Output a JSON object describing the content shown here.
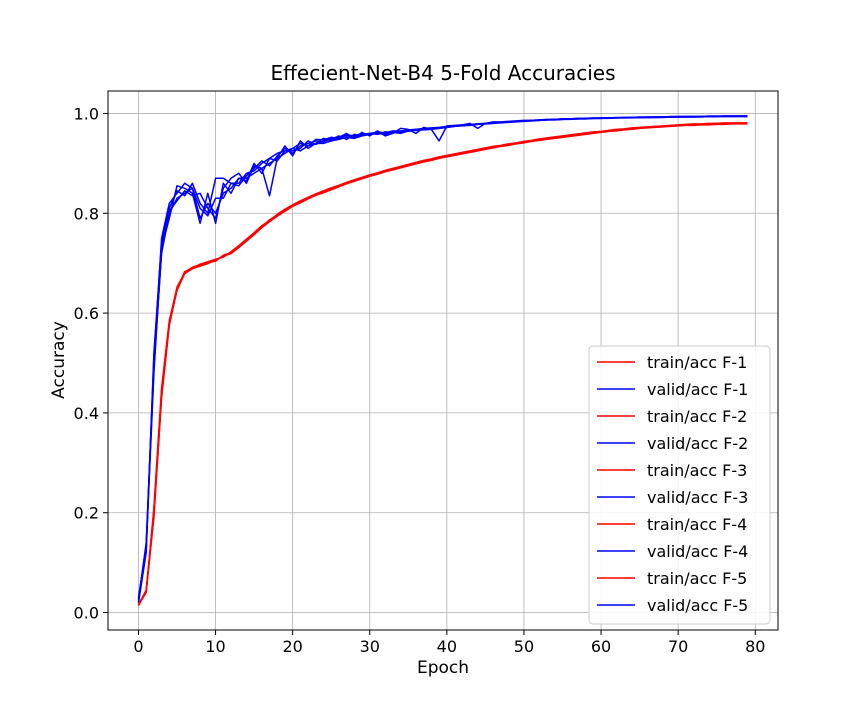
{
  "chart_data": {
    "type": "line",
    "title": "Effecient-Net-B4 5-Fold Accuracies",
    "xlabel": "Epoch",
    "ylabel": "Accuracy",
    "xlim": [
      -3.95,
      82.95
    ],
    "ylim": [
      -0.035,
      1.045
    ],
    "xticks": [
      0,
      10,
      20,
      30,
      40,
      50,
      60,
      70,
      80
    ],
    "xtick_labels": [
      "0",
      "10",
      "20",
      "30",
      "40",
      "50",
      "60",
      "70",
      "80"
    ],
    "yticks": [
      0.0,
      0.2,
      0.4,
      0.6,
      0.8,
      1.0
    ],
    "ytick_labels": [
      "0.0",
      "0.2",
      "0.4",
      "0.6",
      "0.8",
      "1.0"
    ],
    "grid": true,
    "legend_position": "lower-right",
    "colors": {
      "train": "#ff0000",
      "valid": "#0000ff"
    },
    "x": [
      0,
      1,
      2,
      3,
      4,
      5,
      6,
      7,
      8,
      9,
      10,
      11,
      12,
      13,
      14,
      15,
      16,
      17,
      18,
      19,
      20,
      21,
      22,
      23,
      24,
      25,
      26,
      27,
      28,
      29,
      30,
      31,
      32,
      33,
      34,
      35,
      36,
      37,
      38,
      39,
      40,
      41,
      42,
      43,
      44,
      45,
      46,
      47,
      48,
      49,
      50,
      51,
      52,
      53,
      54,
      55,
      56,
      57,
      58,
      59,
      60,
      61,
      62,
      63,
      64,
      65,
      66,
      67,
      68,
      69,
      70,
      71,
      72,
      73,
      74,
      75,
      76,
      77,
      78,
      79
    ],
    "series": [
      {
        "name": "train/acc F-1",
        "color": "#ff0000",
        "values": [
          0.015,
          0.045,
          0.2,
          0.44,
          0.58,
          0.645,
          0.68,
          0.69,
          0.695,
          0.7,
          0.705,
          0.715,
          0.72,
          0.732,
          0.745,
          0.758,
          0.772,
          0.785,
          0.795,
          0.805,
          0.815,
          0.822,
          0.83,
          0.837,
          0.842,
          0.848,
          0.854,
          0.86,
          0.865,
          0.87,
          0.875,
          0.879,
          0.884,
          0.888,
          0.892,
          0.896,
          0.9,
          0.904,
          0.907,
          0.911,
          0.914,
          0.917,
          0.92,
          0.923,
          0.926,
          0.929,
          0.932,
          0.935,
          0.937,
          0.94,
          0.942,
          0.945,
          0.947,
          0.949,
          0.951,
          0.953,
          0.955,
          0.957,
          0.959,
          0.961,
          0.963,
          0.965,
          0.966,
          0.968,
          0.969,
          0.971,
          0.972,
          0.973,
          0.974,
          0.975,
          0.976,
          0.977,
          0.977,
          0.978,
          0.978,
          0.979,
          0.979,
          0.98,
          0.98,
          0.98
        ]
      },
      {
        "name": "valid/acc F-1",
        "color": "#0000ff",
        "values": [
          0.025,
          0.14,
          0.5,
          0.72,
          0.8,
          0.83,
          0.84,
          0.85,
          0.79,
          0.82,
          0.8,
          0.84,
          0.85,
          0.87,
          0.87,
          0.88,
          0.89,
          0.9,
          0.91,
          0.92,
          0.93,
          0.925,
          0.935,
          0.94,
          0.94,
          0.945,
          0.948,
          0.952,
          0.95,
          0.955,
          0.958,
          0.96,
          0.958,
          0.962,
          0.96,
          0.965,
          0.966,
          0.967,
          0.968,
          0.97,
          0.972,
          0.974,
          0.975,
          0.976,
          0.978,
          0.979,
          0.98,
          0.981,
          0.982,
          0.983,
          0.984,
          0.985,
          0.986,
          0.987,
          0.987,
          0.988,
          0.988,
          0.989,
          0.989,
          0.99,
          0.99,
          0.99,
          0.991,
          0.991,
          0.991,
          0.992,
          0.992,
          0.992,
          0.992,
          0.993,
          0.993,
          0.993,
          0.993,
          0.993,
          0.994,
          0.994,
          0.994,
          0.994,
          0.994,
          0.994
        ]
      },
      {
        "name": "train/acc F-2",
        "color": "#ff0000",
        "values": [
          0.016,
          0.04,
          0.21,
          0.45,
          0.585,
          0.65,
          0.682,
          0.692,
          0.697,
          0.702,
          0.706,
          0.713,
          0.722,
          0.734,
          0.747,
          0.76,
          0.774,
          0.786,
          0.797,
          0.807,
          0.816,
          0.824,
          0.831,
          0.838,
          0.844,
          0.85,
          0.855,
          0.861,
          0.866,
          0.871,
          0.876,
          0.88,
          0.885,
          0.889,
          0.893,
          0.897,
          0.901,
          0.905,
          0.908,
          0.912,
          0.915,
          0.918,
          0.921,
          0.924,
          0.927,
          0.93,
          0.933,
          0.935,
          0.938,
          0.94,
          0.943,
          0.945,
          0.948,
          0.95,
          0.952,
          0.954,
          0.956,
          0.958,
          0.96,
          0.962,
          0.963,
          0.965,
          0.967,
          0.968,
          0.97,
          0.971,
          0.972,
          0.973,
          0.974,
          0.975,
          0.976,
          0.977,
          0.978,
          0.978,
          0.979,
          0.979,
          0.98,
          0.98,
          0.98,
          0.981
        ]
      },
      {
        "name": "valid/acc F-2",
        "color": "#0000ff",
        "values": [
          0.02,
          0.12,
          0.52,
          0.74,
          0.81,
          0.845,
          0.835,
          0.86,
          0.82,
          0.8,
          0.87,
          0.87,
          0.86,
          0.855,
          0.875,
          0.89,
          0.905,
          0.895,
          0.915,
          0.93,
          0.92,
          0.935,
          0.94,
          0.945,
          0.943,
          0.95,
          0.953,
          0.955,
          0.953,
          0.958,
          0.96,
          0.962,
          0.96,
          0.964,
          0.962,
          0.966,
          0.968,
          0.969,
          0.97,
          0.971,
          0.973,
          0.975,
          0.976,
          0.977,
          0.979,
          0.98,
          0.981,
          0.982,
          0.983,
          0.984,
          0.985,
          0.986,
          0.986,
          0.987,
          0.988,
          0.988,
          0.989,
          0.989,
          0.99,
          0.99,
          0.99,
          0.991,
          0.991,
          0.992,
          0.992,
          0.992,
          0.992,
          0.993,
          0.993,
          0.993,
          0.993,
          0.994,
          0.994,
          0.994,
          0.994,
          0.994,
          0.995,
          0.995,
          0.995,
          0.995
        ]
      },
      {
        "name": "train/acc F-3",
        "color": "#ff0000",
        "values": [
          0.014,
          0.042,
          0.19,
          0.43,
          0.575,
          0.648,
          0.679,
          0.689,
          0.694,
          0.699,
          0.707,
          0.714,
          0.719,
          0.731,
          0.744,
          0.757,
          0.771,
          0.783,
          0.794,
          0.804,
          0.814,
          0.821,
          0.829,
          0.836,
          0.841,
          0.847,
          0.853,
          0.859,
          0.864,
          0.869,
          0.874,
          0.878,
          0.883,
          0.887,
          0.891,
          0.895,
          0.899,
          0.903,
          0.906,
          0.91,
          0.913,
          0.916,
          0.919,
          0.922,
          0.925,
          0.928,
          0.931,
          0.934,
          0.936,
          0.939,
          0.941,
          0.944,
          0.946,
          0.948,
          0.95,
          0.952,
          0.954,
          0.956,
          0.958,
          0.96,
          0.962,
          0.964,
          0.965,
          0.967,
          0.968,
          0.97,
          0.971,
          0.972,
          0.973,
          0.974,
          0.975,
          0.976,
          0.976,
          0.977,
          0.977,
          0.978,
          0.978,
          0.979,
          0.979,
          0.979
        ]
      },
      {
        "name": "valid/acc F-3",
        "color": "#0000ff",
        "values": [
          0.03,
          0.13,
          0.48,
          0.73,
          0.79,
          0.855,
          0.85,
          0.84,
          0.78,
          0.84,
          0.78,
          0.86,
          0.84,
          0.87,
          0.865,
          0.9,
          0.88,
          0.91,
          0.905,
          0.925,
          0.925,
          0.93,
          0.945,
          0.938,
          0.945,
          0.948,
          0.955,
          0.948,
          0.958,
          0.955,
          0.96,
          0.958,
          0.963,
          0.962,
          0.965,
          0.964,
          0.967,
          0.968,
          0.97,
          0.97,
          0.972,
          0.974,
          0.976,
          0.977,
          0.978,
          0.979,
          0.98,
          0.982,
          0.983,
          0.984,
          0.985,
          0.985,
          0.986,
          0.987,
          0.987,
          0.988,
          0.989,
          0.989,
          0.989,
          0.99,
          0.99,
          0.991,
          0.991,
          0.991,
          0.992,
          0.992,
          0.992,
          0.992,
          0.993,
          0.993,
          0.993,
          0.993,
          0.993,
          0.994,
          0.994,
          0.994,
          0.994,
          0.994,
          0.994,
          0.994
        ]
      },
      {
        "name": "train/acc F-4",
        "color": "#ff0000",
        "values": [
          0.015,
          0.044,
          0.205,
          0.445,
          0.582,
          0.652,
          0.681,
          0.691,
          0.696,
          0.701,
          0.704,
          0.716,
          0.721,
          0.733,
          0.746,
          0.759,
          0.773,
          0.787,
          0.796,
          0.806,
          0.815,
          0.823,
          0.83,
          0.836,
          0.843,
          0.849,
          0.854,
          0.86,
          0.865,
          0.87,
          0.875,
          0.879,
          0.884,
          0.888,
          0.892,
          0.896,
          0.9,
          0.904,
          0.907,
          0.911,
          0.914,
          0.917,
          0.92,
          0.923,
          0.926,
          0.929,
          0.932,
          0.935,
          0.937,
          0.94,
          0.942,
          0.945,
          0.947,
          0.949,
          0.951,
          0.953,
          0.955,
          0.957,
          0.959,
          0.961,
          0.963,
          0.965,
          0.966,
          0.968,
          0.969,
          0.971,
          0.972,
          0.973,
          0.974,
          0.975,
          0.976,
          0.977,
          0.977,
          0.978,
          0.978,
          0.979,
          0.979,
          0.98,
          0.98,
          0.98
        ]
      },
      {
        "name": "valid/acc F-4",
        "color": "#0000ff",
        "values": [
          0.022,
          0.125,
          0.51,
          0.75,
          0.82,
          0.84,
          0.86,
          0.85,
          0.81,
          0.795,
          0.83,
          0.83,
          0.86,
          0.86,
          0.88,
          0.885,
          0.9,
          0.91,
          0.92,
          0.925,
          0.93,
          0.94,
          0.935,
          0.948,
          0.947,
          0.952,
          0.95,
          0.957,
          0.955,
          0.96,
          0.957,
          0.963,
          0.961,
          0.965,
          0.964,
          0.967,
          0.968,
          0.97,
          0.971,
          0.972,
          0.974,
          0.975,
          0.977,
          0.978,
          0.979,
          0.98,
          0.981,
          0.982,
          0.983,
          0.984,
          0.985,
          0.986,
          0.987,
          0.987,
          0.988,
          0.989,
          0.989,
          0.99,
          0.99,
          0.99,
          0.991,
          0.991,
          0.991,
          0.992,
          0.992,
          0.992,
          0.993,
          0.993,
          0.993,
          0.993,
          0.994,
          0.994,
          0.994,
          0.994,
          0.994,
          0.994,
          0.995,
          0.995,
          0.995,
          0.995
        ]
      },
      {
        "name": "train/acc F-5",
        "color": "#ff0000",
        "values": [
          0.016,
          0.043,
          0.195,
          0.435,
          0.578,
          0.646,
          0.683,
          0.69,
          0.698,
          0.703,
          0.708,
          0.712,
          0.723,
          0.735,
          0.748,
          0.761,
          0.775,
          0.784,
          0.798,
          0.808,
          0.817,
          0.825,
          0.832,
          0.839,
          0.845,
          0.851,
          0.856,
          0.862,
          0.867,
          0.872,
          0.877,
          0.881,
          0.886,
          0.89,
          0.894,
          0.898,
          0.902,
          0.906,
          0.909,
          0.913,
          0.916,
          0.919,
          0.922,
          0.925,
          0.928,
          0.931,
          0.934,
          0.936,
          0.939,
          0.941,
          0.944,
          0.946,
          0.949,
          0.951,
          0.953,
          0.955,
          0.957,
          0.959,
          0.961,
          0.963,
          0.964,
          0.966,
          0.968,
          0.969,
          0.971,
          0.972,
          0.973,
          0.974,
          0.975,
          0.976,
          0.977,
          0.978,
          0.979,
          0.979,
          0.98,
          0.98,
          0.981,
          0.981,
          0.981,
          0.981
        ]
      },
      {
        "name": "valid/acc F-5",
        "color": "#0000ff",
        "values": [
          0.028,
          0.135,
          0.49,
          0.725,
          0.805,
          0.825,
          0.845,
          0.835,
          0.84,
          0.81,
          0.79,
          0.85,
          0.87,
          0.88,
          0.86,
          0.895,
          0.89,
          0.835,
          0.91,
          0.935,
          0.915,
          0.945,
          0.93,
          0.94,
          0.95,
          0.945,
          0.952,
          0.96,
          0.95,
          0.962,
          0.955,
          0.965,
          0.955,
          0.96,
          0.97,
          0.968,
          0.96,
          0.972,
          0.968,
          0.945,
          0.975,
          0.976,
          0.977,
          0.98,
          0.97,
          0.98,
          0.983,
          0.983,
          0.984,
          0.985,
          0.986,
          0.986,
          0.987,
          0.988,
          0.988,
          0.989,
          0.989,
          0.99,
          0.99,
          0.991,
          0.991,
          0.991,
          0.992,
          0.992,
          0.992,
          0.993,
          0.993,
          0.993,
          0.993,
          0.994,
          0.994,
          0.994,
          0.994,
          0.994,
          0.995,
          0.995,
          0.995,
          0.995,
          0.995,
          0.995
        ]
      }
    ]
  }
}
